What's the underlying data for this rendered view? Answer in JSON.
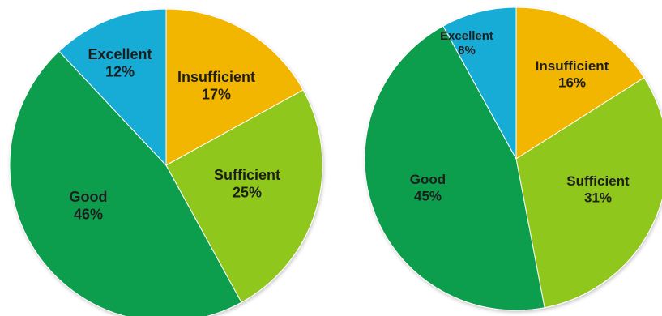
{
  "chart_data": [
    {
      "type": "pie",
      "title": "",
      "slices": [
        {
          "label": "Insufficient",
          "value": 17,
          "pct_label": "17%",
          "color": "#f3b600"
        },
        {
          "label": "Sufficient",
          "value": 25,
          "pct_label": "25%",
          "color": "#8fc71a"
        },
        {
          "label": "Good",
          "value": 46,
          "pct_label": "46%",
          "color": "#0e9e4e"
        },
        {
          "label": "Excellent",
          "value": 12,
          "pct_label": "12%",
          "color": "#15acd6"
        }
      ]
    },
    {
      "type": "pie",
      "title": "",
      "slices": [
        {
          "label": "Insufficient",
          "value": 16,
          "pct_label": "16%",
          "color": "#f3b600"
        },
        {
          "label": "Sufficient",
          "value": 31,
          "pct_label": "31%",
          "color": "#8fc71a"
        },
        {
          "label": "Good",
          "value": 45,
          "pct_label": "45%",
          "color": "#0e9e4e"
        },
        {
          "label": "Excellent",
          "value": 8,
          "pct_label": "8%",
          "color": "#15acd6"
        }
      ]
    }
  ]
}
